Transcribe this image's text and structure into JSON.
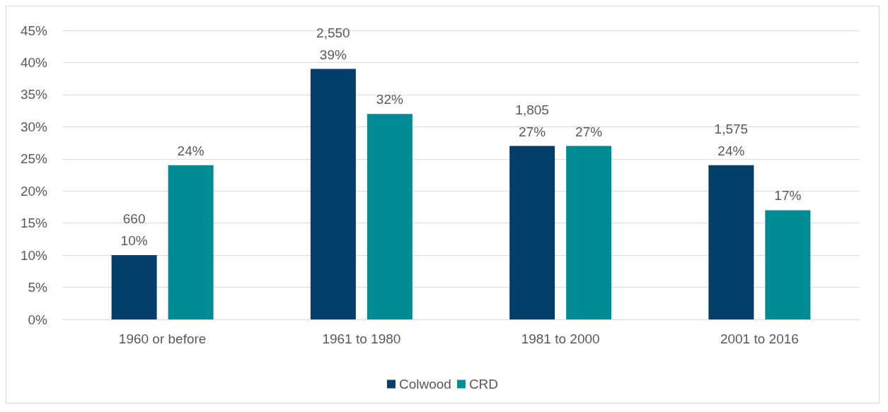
{
  "chart_data": {
    "type": "bar",
    "categories": [
      "1960 or before",
      "1961 to 1980",
      "1981 to 2000",
      "2001 to 2016"
    ],
    "series": [
      {
        "name": "Colwood",
        "color": "#043e6b",
        "values": [
          10,
          39,
          27,
          24
        ],
        "value_labels": [
          "660\n10%",
          "2,550\n39%",
          "1,805\n27%",
          "1,575\n24%"
        ]
      },
      {
        "name": "CRD",
        "color": "#008c95",
        "values": [
          24,
          32,
          27,
          17
        ],
        "value_labels": [
          "24%",
          "32%",
          "27%",
          "17%"
        ]
      }
    ],
    "ylim": [
      0,
      45
    ],
    "yticks": [
      {
        "value": 0,
        "label": "0%"
      },
      {
        "value": 5,
        "label": "5%"
      },
      {
        "value": 10,
        "label": "10%"
      },
      {
        "value": 15,
        "label": "15%"
      },
      {
        "value": 20,
        "label": "20%"
      },
      {
        "value": 25,
        "label": "25%"
      },
      {
        "value": 30,
        "label": "30%"
      },
      {
        "value": 35,
        "label": "35%"
      },
      {
        "value": 40,
        "label": "40%"
      },
      {
        "value": 45,
        "label": "45%"
      }
    ],
    "grid": "y",
    "legend": "bottom"
  }
}
